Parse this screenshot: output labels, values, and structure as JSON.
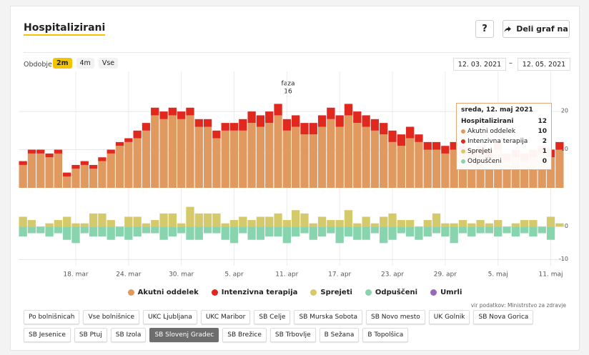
{
  "header": {
    "title": "Hospitalizirani",
    "help": "?",
    "share": "Deli graf na"
  },
  "period": {
    "label": "Obdobje",
    "options": [
      "2m",
      "4m",
      "Vse"
    ],
    "active": "2m",
    "from": "12. 03. 2021",
    "separator": "–",
    "to": "12. 05. 2021"
  },
  "chart_data": [
    {
      "type": "bar",
      "stacked": true,
      "grid": true,
      "ylim": [
        0,
        29
      ],
      "yticks": [
        10,
        20
      ],
      "annotation": {
        "title": "faza",
        "text": "16"
      },
      "series": [
        {
          "name": "Akutni oddelek",
          "color": "#e09a5f",
          "values": [
            6,
            9,
            9,
            8,
            9,
            3,
            5,
            6,
            5,
            7,
            9,
            11,
            12,
            13,
            15,
            19,
            18,
            19,
            18,
            19,
            16,
            16,
            13,
            15,
            15,
            15,
            17,
            16,
            17,
            19,
            15,
            16,
            14,
            14,
            16,
            18,
            16,
            19,
            17,
            16,
            15,
            14,
            12,
            11,
            13,
            12,
            10,
            10,
            9,
            10,
            9,
            8,
            9,
            8,
            10,
            7,
            8,
            7,
            8,
            9,
            8,
            10
          ]
        },
        {
          "name": "Intenzivna terapija",
          "color": "#e0281f",
          "values": [
            1,
            1,
            1,
            1,
            1,
            1,
            1,
            1,
            1,
            1,
            1,
            1,
            1,
            2,
            2,
            2,
            2,
            2,
            2,
            2,
            2,
            2,
            2,
            2,
            2,
            3,
            3,
            3,
            3,
            3,
            3,
            3,
            3,
            3,
            3,
            3,
            3,
            3,
            3,
            3,
            3,
            3,
            3,
            3,
            3,
            2,
            2,
            2,
            2,
            2,
            2,
            2,
            2,
            2,
            2,
            2,
            2,
            2,
            2,
            2,
            2,
            2
          ]
        }
      ]
    },
    {
      "type": "bar",
      "stacked": true,
      "grid": true,
      "ylim": [
        -11,
        7
      ],
      "yticks": [
        -10,
        0
      ],
      "categories": [
        null,
        null,
        null,
        null,
        null,
        null,
        "18. mar",
        null,
        null,
        null,
        null,
        null,
        "24. mar",
        null,
        null,
        null,
        null,
        null,
        "30. mar",
        null,
        null,
        null,
        null,
        null,
        "5. apr",
        null,
        null,
        null,
        null,
        null,
        "11. apr",
        null,
        null,
        null,
        null,
        null,
        "17. apr",
        null,
        null,
        null,
        null,
        null,
        "23. apr",
        null,
        null,
        null,
        null,
        null,
        "29. apr",
        null,
        null,
        null,
        null,
        null,
        "5. maj",
        null,
        null,
        null,
        null,
        null,
        "11. maj",
        null
      ],
      "series": [
        {
          "name": "Sprejeti",
          "color": "#d5ca6b",
          "values": [
            3,
            2,
            0,
            1,
            2,
            3,
            1,
            1,
            4,
            4,
            2,
            0,
            3,
            3,
            1,
            2,
            4,
            4,
            1,
            6,
            4,
            4,
            4,
            1,
            2,
            3,
            2,
            3,
            3,
            4,
            2,
            5,
            4,
            1,
            3,
            2,
            2,
            5,
            1,
            3,
            1,
            3,
            4,
            2,
            2,
            0,
            2,
            4,
            1,
            1,
            2,
            1,
            2,
            1,
            2,
            0,
            1,
            2,
            2,
            0,
            3,
            1
          ]
        },
        {
          "name": "Odpuščeni",
          "color": "#88d4ae",
          "values": [
            -3,
            -2,
            -2,
            -3,
            -2,
            -4,
            -5,
            -2,
            -3,
            -3,
            -4,
            -3,
            -4,
            -3,
            -2,
            -2,
            -4,
            -3,
            -2,
            -4,
            -4,
            -2,
            -2,
            -4,
            -5,
            -2,
            -4,
            -4,
            -3,
            -3,
            -5,
            -3,
            -2,
            -4,
            -3,
            -2,
            -5,
            -3,
            -4,
            -4,
            -2,
            -5,
            -4,
            -2,
            -3,
            -4,
            -3,
            -2,
            -3,
            -5,
            -2,
            -3,
            -2,
            -2,
            -3,
            -2,
            -3,
            -2,
            -3,
            -2,
            -4,
            0
          ]
        },
        {
          "name": "Umrli",
          "color": "#9a68b8",
          "values": [
            0,
            0,
            0,
            0,
            0,
            0,
            0,
            0,
            0,
            0,
            0,
            0,
            0,
            0,
            0,
            0,
            0,
            0,
            0,
            0,
            0,
            0,
            0,
            0,
            0,
            0,
            0,
            0,
            0,
            0,
            0,
            0,
            0,
            0,
            0,
            0,
            0,
            0,
            0,
            0,
            0,
            0,
            0,
            0,
            0,
            0,
            0,
            0,
            0,
            0,
            0,
            0,
            0,
            0,
            0,
            0,
            0,
            0,
            0,
            0,
            0,
            0
          ]
        }
      ]
    }
  ],
  "tooltip": {
    "title": "sreda, 12. maj 2021",
    "rows": [
      {
        "label": "Hospitalizirani",
        "value": 12
      },
      {
        "label": "Akutni oddelek",
        "value": 10,
        "color": "#e09a5f"
      },
      {
        "label": "Intenzivna terapija",
        "value": 2,
        "color": "#e0281f"
      },
      {
        "label": "Sprejeti",
        "value": 1,
        "color": "#d5ca6b"
      },
      {
        "label": "Odpuščeni",
        "value": 0,
        "color": "#88d4ae"
      }
    ]
  },
  "source": "vir podatkov: Ministrstvo za zdravje",
  "hospitals": {
    "active": "SB Slovenj Gradec",
    "options": [
      "Po bolnišnicah",
      "Vse bolnišnice",
      "UKC Ljubljana",
      "UKC Maribor",
      "SB Celje",
      "SB Murska Sobota",
      "SB Novo mesto",
      "UK Golnik",
      "SB Nova Gorica",
      "SB Jesenice",
      "SB Ptuj",
      "SB Izola",
      "SB Slovenj Gradec",
      "SB Brežice",
      "SB Trbovlje",
      "B Sežana",
      "B Topolšica"
    ]
  }
}
